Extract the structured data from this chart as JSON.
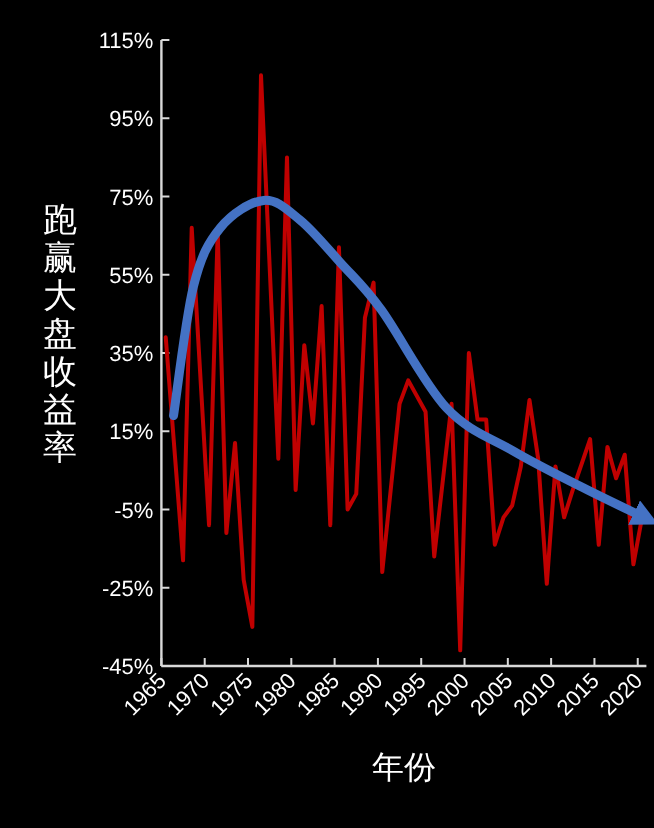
{
  "chart_data": {
    "type": "line",
    "xlabel": "年份",
    "ylabel": "跑赢大盘收益率",
    "xlim": [
      1965,
      2021
    ],
    "xticks": [
      1965,
      1970,
      1975,
      1980,
      1985,
      1990,
      1995,
      2000,
      2005,
      2010,
      2015,
      2020
    ],
    "ylim": [
      -45,
      115
    ],
    "yticks": [
      {
        "value": -45,
        "label": "-45%"
      },
      {
        "value": -25,
        "label": "-25%"
      },
      {
        "value": -5,
        "label": "-5%"
      },
      {
        "value": 15,
        "label": "15%"
      },
      {
        "value": 35,
        "label": "35%"
      },
      {
        "value": 55,
        "label": "55%"
      },
      {
        "value": 75,
        "label": "75%"
      },
      {
        "value": 95,
        "label": "95%"
      },
      {
        "value": 115,
        "label": "115%"
      }
    ],
    "grid": false,
    "line_style": "solid",
    "series": [
      {
        "color": "#c00000",
        "x": [
          1965.5,
          1967.5,
          1968.5,
          1970.5,
          1971.5,
          1972.5,
          1973.5,
          1974.5,
          1975.5,
          1976.5,
          1978.5,
          1979.5,
          1980.5,
          1981.5,
          1982.5,
          1983.5,
          1984.5,
          1985.5,
          1986.5,
          1987.5,
          1988.5,
          1989.5,
          1990.5,
          1992.5,
          1993.5,
          1995.5,
          1996.5,
          1998.5,
          1999.5,
          2000.5,
          2001.5,
          2002.5,
          2003.5,
          2004.5,
          2005.5,
          2006.5,
          2007.5,
          2008.5,
          2009.5,
          2010.5,
          2011.5,
          2012.5,
          2014.5,
          2015.5,
          2016.5,
          2017.5,
          2018.5,
          2019.5,
          2020.5
        ],
        "values": [
          39,
          -18,
          67,
          -9,
          66,
          -11,
          12,
          -23,
          -35,
          106,
          8,
          85,
          0,
          37,
          17,
          47,
          -9,
          62,
          -5,
          -1,
          44,
          53,
          -21,
          22,
          28,
          20,
          -17,
          22,
          -41,
          35,
          18,
          18,
          -14,
          -7,
          -4,
          6,
          23,
          8,
          -24,
          6,
          -7,
          0,
          13,
          -14,
          11,
          3,
          9,
          -19,
          -7
        ]
      },
      {
        "type": "line",
        "color": "#4472c4",
        "x": [
          1966.4,
          1968.7,
          1971.8,
          1976.8,
          1981,
          1985.7,
          1990.4,
          1997.9,
          2005.6,
          2013.3,
          2020.7
        ],
        "values": [
          19,
          52,
          67,
          74,
          69,
          58,
          46,
          21,
          10,
          1,
          -7
        ]
      }
    ]
  }
}
